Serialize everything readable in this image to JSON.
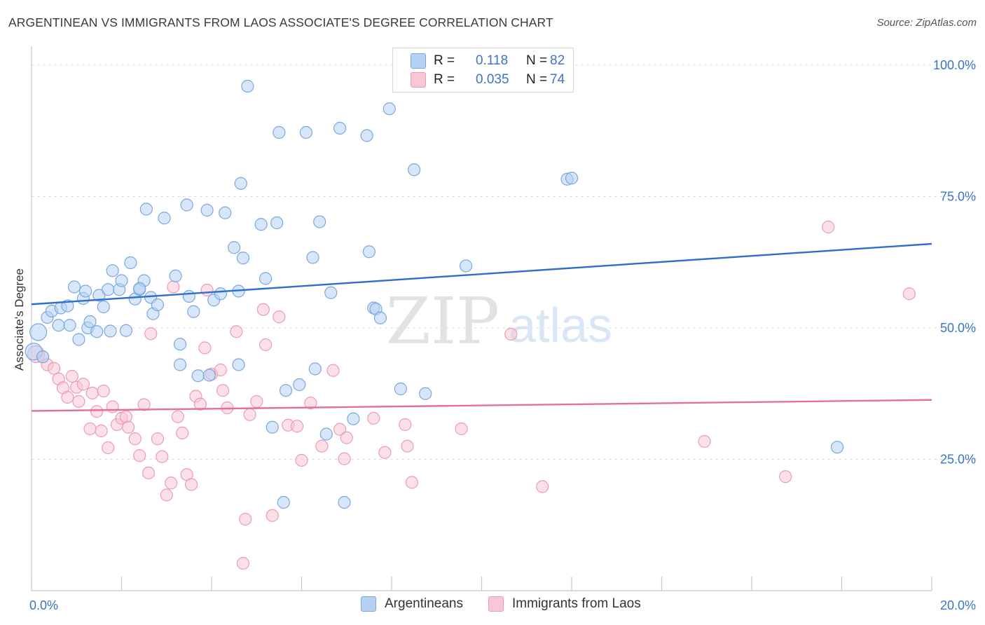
{
  "header": {
    "title": "ARGENTINEAN VS IMMIGRANTS FROM LAOS ASSOCIATE'S DEGREE CORRELATION CHART",
    "source": "Source: ZipAtlas.com"
  },
  "watermark": {
    "zip": "ZIP",
    "atlas": "atlas"
  },
  "legend_top": {
    "rows": [
      {
        "r_label": "R =",
        "r_value": "0.118",
        "n_label": "N =",
        "n_value": "82"
      },
      {
        "r_label": "R =",
        "r_value": "0.035",
        "n_label": "N =",
        "n_value": "74"
      }
    ]
  },
  "legend_bottom": {
    "items": [
      {
        "label": "Argentineans"
      },
      {
        "label": "Immigrants from Laos"
      }
    ]
  },
  "colors": {
    "blue_fill": "#b7d1f2",
    "blue_stroke": "#7aa7de",
    "blue_line": "#2f6fcb",
    "pink_fill": "#f8c6d6",
    "pink_stroke": "#ec9ab6",
    "pink_line": "#e4709a",
    "tick_text": "#3b74c8",
    "grid": "#dcdcdc"
  },
  "chart_data": {
    "type": "scatter",
    "title": "ARGENTINEAN VS IMMIGRANTS FROM LAOS ASSOCIATE'S DEGREE CORRELATION CHART",
    "xlabel": "",
    "ylabel": "Associate's Degree",
    "xlim": [
      0,
      20
    ],
    "ylim": [
      0,
      102
    ],
    "x_tick_labels": [
      {
        "value": 0,
        "label": "0.0%"
      },
      {
        "value": 20,
        "label": "20.0%"
      }
    ],
    "y_tick_labels": [
      {
        "value": 25,
        "label": "25.0%"
      },
      {
        "value": 50,
        "label": "50.0%"
      },
      {
        "value": 75,
        "label": "75.0%"
      },
      {
        "value": 100,
        "label": "100.0%"
      }
    ],
    "x_minor_ticks": [
      0,
      2,
      4,
      6,
      8,
      10,
      12,
      14,
      16,
      18,
      20
    ],
    "grid": true,
    "legend_placement": "top-center",
    "series": [
      {
        "name": "Argentineans",
        "color": "#b7d1f2",
        "trend": {
          "x": [
            0,
            20
          ],
          "y": [
            54.5,
            66.0
          ]
        },
        "points": [
          [
            0.05,
            45.5
          ],
          [
            0.15,
            49.2
          ],
          [
            0.35,
            52.0
          ],
          [
            0.45,
            53.2
          ],
          [
            0.6,
            50.5
          ],
          [
            0.65,
            53.8
          ],
          [
            0.8,
            54.2
          ],
          [
            0.85,
            50.5
          ],
          [
            0.95,
            57.8
          ],
          [
            1.05,
            47.8
          ],
          [
            1.15,
            55.6
          ],
          [
            1.25,
            50.0
          ],
          [
            1.3,
            51.2
          ],
          [
            1.45,
            49.3
          ],
          [
            1.5,
            56.2
          ],
          [
            1.6,
            54.0
          ],
          [
            1.7,
            57.3
          ],
          [
            1.75,
            49.4
          ],
          [
            1.8,
            60.9
          ],
          [
            1.95,
            57.3
          ],
          [
            2.0,
            59.0
          ],
          [
            2.1,
            49.5
          ],
          [
            2.2,
            62.4
          ],
          [
            2.3,
            55.5
          ],
          [
            2.4,
            57.3
          ],
          [
            2.5,
            59.0
          ],
          [
            2.55,
            72.6
          ],
          [
            2.65,
            55.8
          ],
          [
            2.7,
            52.7
          ],
          [
            2.8,
            54.4
          ],
          [
            2.95,
            70.9
          ],
          [
            3.2,
            59.9
          ],
          [
            3.3,
            46.9
          ],
          [
            3.45,
            73.4
          ],
          [
            3.5,
            56.0
          ],
          [
            3.6,
            53.1
          ],
          [
            3.7,
            40.9
          ],
          [
            3.9,
            72.4
          ],
          [
            3.95,
            41.0
          ],
          [
            4.05,
            55.3
          ],
          [
            4.2,
            56.5
          ],
          [
            4.3,
            71.9
          ],
          [
            4.5,
            65.3
          ],
          [
            4.6,
            57.0
          ],
          [
            4.65,
            77.5
          ],
          [
            4.7,
            63.3
          ],
          [
            4.8,
            96.0
          ],
          [
            5.1,
            69.7
          ],
          [
            5.2,
            59.4
          ],
          [
            5.35,
            31.1
          ],
          [
            5.45,
            70.0
          ],
          [
            5.5,
            87.2
          ],
          [
            5.6,
            16.8
          ],
          [
            5.65,
            38.1
          ],
          [
            5.95,
            39.2
          ],
          [
            6.1,
            87.2
          ],
          [
            6.25,
            63.4
          ],
          [
            6.3,
            42.2
          ],
          [
            6.4,
            70.2
          ],
          [
            6.55,
            29.8
          ],
          [
            6.65,
            56.7
          ],
          [
            6.85,
            88.0
          ],
          [
            6.95,
            16.8
          ],
          [
            7.15,
            32.7
          ],
          [
            7.45,
            86.6
          ],
          [
            7.5,
            64.5
          ],
          [
            7.6,
            53.8
          ],
          [
            7.65,
            53.6
          ],
          [
            7.75,
            51.9
          ],
          [
            7.95,
            91.7
          ],
          [
            8.2,
            38.4
          ],
          [
            8.5,
            80.1
          ],
          [
            8.75,
            37.5
          ],
          [
            9.65,
            61.8
          ],
          [
            11.9,
            78.3
          ],
          [
            12.0,
            78.5
          ],
          [
            17.9,
            27.3
          ],
          [
            0.25,
            44.5
          ],
          [
            2.4,
            57.5
          ],
          [
            4.6,
            43.0
          ],
          [
            1.2,
            57.0
          ],
          [
            3.3,
            43.0
          ]
        ]
      },
      {
        "name": "Immigrants from Laos",
        "color": "#f8c6d6",
        "trend": {
          "x": [
            0,
            20
          ],
          "y": [
            34.2,
            36.3
          ]
        },
        "points": [
          [
            0.1,
            45.0
          ],
          [
            0.25,
            44.5
          ],
          [
            0.35,
            43.0
          ],
          [
            0.5,
            42.3
          ],
          [
            0.6,
            40.3
          ],
          [
            0.7,
            38.6
          ],
          [
            0.8,
            36.8
          ],
          [
            0.9,
            40.8
          ],
          [
            1.0,
            38.7
          ],
          [
            1.05,
            36.0
          ],
          [
            1.15,
            39.3
          ],
          [
            1.3,
            30.8
          ],
          [
            1.35,
            37.6
          ],
          [
            1.45,
            34.1
          ],
          [
            1.55,
            30.4
          ],
          [
            1.6,
            38.0
          ],
          [
            1.7,
            27.2
          ],
          [
            1.8,
            35.0
          ],
          [
            1.9,
            31.6
          ],
          [
            2.0,
            32.8
          ],
          [
            2.1,
            33.1
          ],
          [
            2.15,
            31.1
          ],
          [
            2.3,
            28.9
          ],
          [
            2.4,
            25.7
          ],
          [
            2.5,
            35.4
          ],
          [
            2.6,
            22.4
          ],
          [
            2.65,
            48.9
          ],
          [
            2.8,
            28.9
          ],
          [
            2.9,
            25.5
          ],
          [
            3.0,
            18.2
          ],
          [
            3.1,
            20.5
          ],
          [
            3.15,
            57.8
          ],
          [
            3.25,
            33.1
          ],
          [
            3.35,
            30.0
          ],
          [
            3.45,
            22.1
          ],
          [
            3.55,
            20.2
          ],
          [
            3.65,
            37.0
          ],
          [
            3.75,
            35.5
          ],
          [
            3.85,
            46.2
          ],
          [
            3.9,
            57.2
          ],
          [
            4.0,
            41.2
          ],
          [
            4.2,
            42.0
          ],
          [
            4.25,
            38.1
          ],
          [
            4.35,
            34.8
          ],
          [
            4.55,
            49.3
          ],
          [
            4.7,
            5.2
          ],
          [
            4.75,
            13.6
          ],
          [
            4.85,
            33.5
          ],
          [
            5.0,
            36.0
          ],
          [
            5.15,
            53.5
          ],
          [
            5.2,
            46.8
          ],
          [
            5.35,
            14.3
          ],
          [
            5.5,
            52.1
          ],
          [
            5.7,
            31.5
          ],
          [
            5.9,
            31.3
          ],
          [
            6.0,
            24.8
          ],
          [
            6.2,
            35.7
          ],
          [
            6.45,
            27.5
          ],
          [
            6.7,
            41.9
          ],
          [
            6.85,
            30.7
          ],
          [
            6.95,
            25.1
          ],
          [
            7.0,
            29.1
          ],
          [
            7.6,
            32.8
          ],
          [
            7.85,
            26.3
          ],
          [
            8.3,
            31.6
          ],
          [
            8.35,
            27.5
          ],
          [
            8.45,
            20.6
          ],
          [
            9.55,
            30.8
          ],
          [
            10.65,
            48.8
          ],
          [
            11.35,
            19.8
          ],
          [
            14.95,
            28.4
          ],
          [
            16.75,
            21.7
          ],
          [
            17.7,
            69.2
          ],
          [
            19.5,
            56.5
          ]
        ]
      }
    ]
  }
}
